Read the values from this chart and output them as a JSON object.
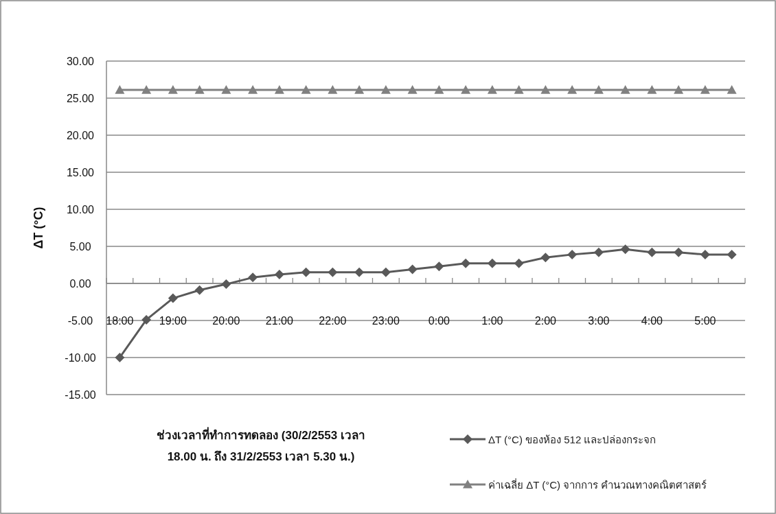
{
  "chart_data": {
    "type": "line",
    "xlabel": "ช่วงเวลาที่ทำการทดลอง (30/2/2553 เวลา 18.00 น. ถึง 31/2/2553 เวลา 5.30 น.)",
    "ylabel": "ΔT (°C)",
    "categories": [
      "18:00",
      null,
      "19:00",
      null,
      "20:00",
      null,
      "21:00",
      null,
      "22:00",
      null,
      "23:00",
      null,
      "0:00",
      null,
      "1:00",
      null,
      "2:00",
      null,
      "3:00",
      null,
      "4:00",
      null,
      "5:00",
      null
    ],
    "series": [
      {
        "name": "ΔT (°C) ของห้อง 512  และปล่องกระจก",
        "color": "#595959",
        "marker": "diamond",
        "values": [
          -10.0,
          -4.9,
          -2.0,
          -0.9,
          -0.1,
          0.8,
          1.2,
          1.5,
          1.5,
          1.5,
          1.5,
          1.9,
          2.3,
          2.7,
          2.7,
          2.7,
          3.5,
          3.9,
          4.2,
          4.6,
          4.2,
          4.2,
          3.9,
          3.9
        ]
      },
      {
        "name": "ค่าเฉลี่ย ΔT (°C) จากการ คำนวณทางคณิตศาสตร์",
        "color": "#808080",
        "marker": "triangle",
        "values": [
          26.1,
          26.1,
          26.1,
          26.1,
          26.1,
          26.1,
          26.1,
          26.1,
          26.1,
          26.1,
          26.1,
          26.1,
          26.1,
          26.1,
          26.1,
          26.1,
          26.1,
          26.1,
          26.1,
          26.1,
          26.1,
          26.1,
          26.1,
          26.1
        ]
      }
    ],
    "ylim": [
      -15,
      30
    ],
    "yticks": [
      {
        "value": -15,
        "label": "-15.00"
      },
      {
        "value": -10,
        "label": "-10.00"
      },
      {
        "value": -5,
        "label": "-5.00"
      },
      {
        "value": 0,
        "label": "0.00"
      },
      {
        "value": 5,
        "label": "5.00"
      },
      {
        "value": 10,
        "label": "10.00"
      },
      {
        "value": 15,
        "label": "15.00"
      },
      {
        "value": 20,
        "label": "20.00"
      },
      {
        "value": 25,
        "label": "25.00"
      },
      {
        "value": 30,
        "label": "30.00"
      }
    ],
    "grid": "y",
    "legend": "bottom right"
  }
}
